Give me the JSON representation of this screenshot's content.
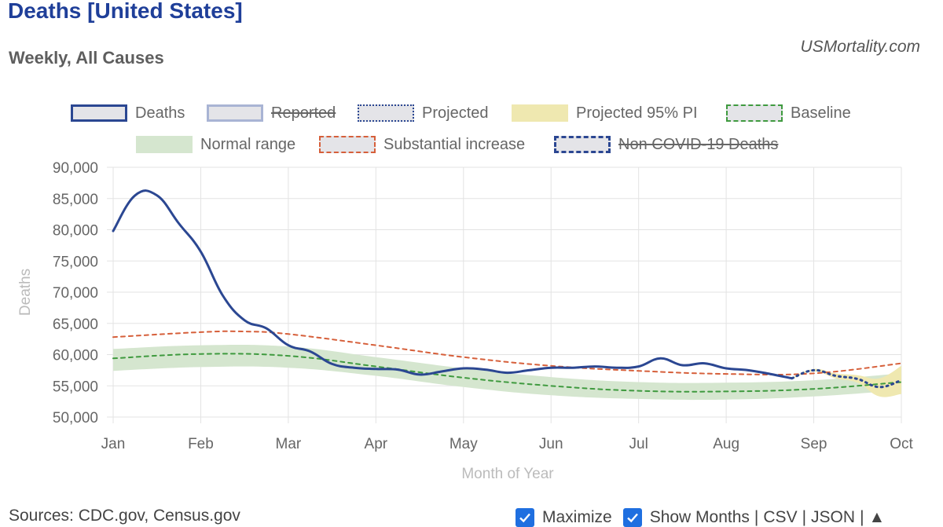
{
  "header": {
    "title": "Deaths [United States]",
    "subtitle": "Weekly, All Causes",
    "brand": "USMortality.com"
  },
  "legend": [
    {
      "key": "deaths",
      "label": "Deaths",
      "hidden": false,
      "fill": "#e4e4e8",
      "border": "#2b4792",
      "style": "solid"
    },
    {
      "key": "reported",
      "label": "Reported",
      "hidden": true,
      "fill": "#e4e4e8",
      "border": "#a9b4d4",
      "style": "solid"
    },
    {
      "key": "projected",
      "label": "Projected",
      "hidden": false,
      "fill": "#e4e4e8",
      "border": "#2b4792",
      "style": "dotted"
    },
    {
      "key": "pi",
      "label": "Projected 95% PI",
      "hidden": false,
      "fill": "#efe8b0",
      "border": "#efe8b0",
      "style": "none"
    },
    {
      "key": "baseline",
      "label": "Baseline",
      "hidden": false,
      "fill": "#e4e4e8",
      "border": "#3f9a3f",
      "style": "dashed"
    },
    {
      "key": "normal",
      "label": "Normal range",
      "hidden": false,
      "fill": "#d5e6cf",
      "border": "#d5e6cf",
      "style": "none"
    },
    {
      "key": "substantial",
      "label": "Substantial increase",
      "hidden": false,
      "fill": "#e4e4e8",
      "border": "#d65f3a",
      "style": "dashed"
    },
    {
      "key": "noncovid",
      "label": "Non COVID-19 Deaths",
      "hidden": true,
      "fill": "#e4e4e8",
      "border": "#2b4792",
      "style": "longdash"
    }
  ],
  "chart_data": {
    "type": "line",
    "title": "Deaths [United States]",
    "subtitle": "Weekly, All Causes",
    "xlabel": "Month of Year",
    "ylabel": "Deaths",
    "xlim": [
      0,
      9
    ],
    "ylim": [
      50000,
      90000
    ],
    "x_unit": "months since Jan 1",
    "x_ticks": [
      "Jan",
      "Feb",
      "Mar",
      "Apr",
      "May",
      "Jun",
      "Jul",
      "Aug",
      "Sep",
      "Oct"
    ],
    "y_ticks": [
      "50,000",
      "55,000",
      "60,000",
      "65,000",
      "70,000",
      "75,000",
      "80,000",
      "85,000",
      "90,000"
    ],
    "grid": true,
    "colors": {
      "deaths": "#2b4792",
      "projected": "#2b4792",
      "baseline": "#3f9a3f",
      "substantial": "#d65f3a",
      "normal": "#d5e6cf",
      "pi": "#efe8b0",
      "grid": "#e3e3e3"
    },
    "series": [
      {
        "name": "Deaths",
        "x": [
          0,
          0.25,
          0.5,
          0.75,
          1.0,
          1.25,
          1.5,
          1.75,
          2.0,
          2.25,
          2.5,
          2.75,
          3.0,
          3.25,
          3.5,
          3.75,
          4.0,
          4.25,
          4.5,
          4.75,
          5.0,
          5.25,
          5.5,
          5.75,
          6.0,
          6.25,
          6.5,
          6.75,
          7.0,
          7.25,
          7.5,
          7.75
        ],
        "values": [
          79800,
          85500,
          85500,
          81000,
          76500,
          69500,
          65500,
          64200,
          61500,
          60500,
          58500,
          57900,
          57700,
          57600,
          56800,
          57300,
          57800,
          57600,
          57100,
          57500,
          57900,
          57900,
          58100,
          57900,
          58100,
          59400,
          58300,
          58600,
          57800,
          57500,
          56900,
          56200
        ]
      },
      {
        "name": "Projected",
        "x": [
          7.75,
          8.0,
          8.25,
          8.5,
          8.75,
          9.0
        ],
        "values": [
          56200,
          57500,
          56600,
          56100,
          54800,
          55900
        ]
      },
      {
        "name": "Baseline",
        "x": [
          0,
          1,
          2,
          3,
          4,
          5,
          6,
          7,
          8,
          9
        ],
        "values": [
          59400,
          60100,
          59800,
          58100,
          56300,
          55000,
          54200,
          54100,
          54500,
          55600
        ]
      },
      {
        "name": "Substantial increase",
        "x": [
          0,
          1,
          1.5,
          2,
          3,
          4,
          5,
          6,
          7,
          8,
          9
        ],
        "values": [
          62800,
          63600,
          63700,
          63300,
          61500,
          59600,
          58200,
          57400,
          56900,
          57000,
          58600
        ]
      },
      {
        "name": "Normal range",
        "x": [
          0,
          1,
          2,
          3,
          4,
          5,
          6,
          7,
          8,
          9
        ],
        "upper": [
          60900,
          61500,
          61300,
          59600,
          57800,
          56400,
          55600,
          55500,
          55900,
          57000
        ],
        "lower": [
          57400,
          58000,
          57900,
          56600,
          54800,
          53500,
          52900,
          52800,
          53300,
          54300
        ]
      },
      {
        "name": "Projected 95% PI",
        "x": [
          7.75,
          8.0,
          8.25,
          8.5,
          8.75,
          9.0
        ],
        "upper": [
          56300,
          57700,
          57000,
          56700,
          56200,
          58200
        ],
        "lower": [
          56100,
          57300,
          56200,
          55500,
          53300,
          53700
        ]
      }
    ]
  },
  "footer": {
    "sources": "Sources: CDC.gov, Census.gov",
    "maximize_label": "Maximize",
    "show_months_label": "Show Months",
    "csv_label": "CSV",
    "json_label": "JSON",
    "separator": "|",
    "up_icon": "▲"
  }
}
